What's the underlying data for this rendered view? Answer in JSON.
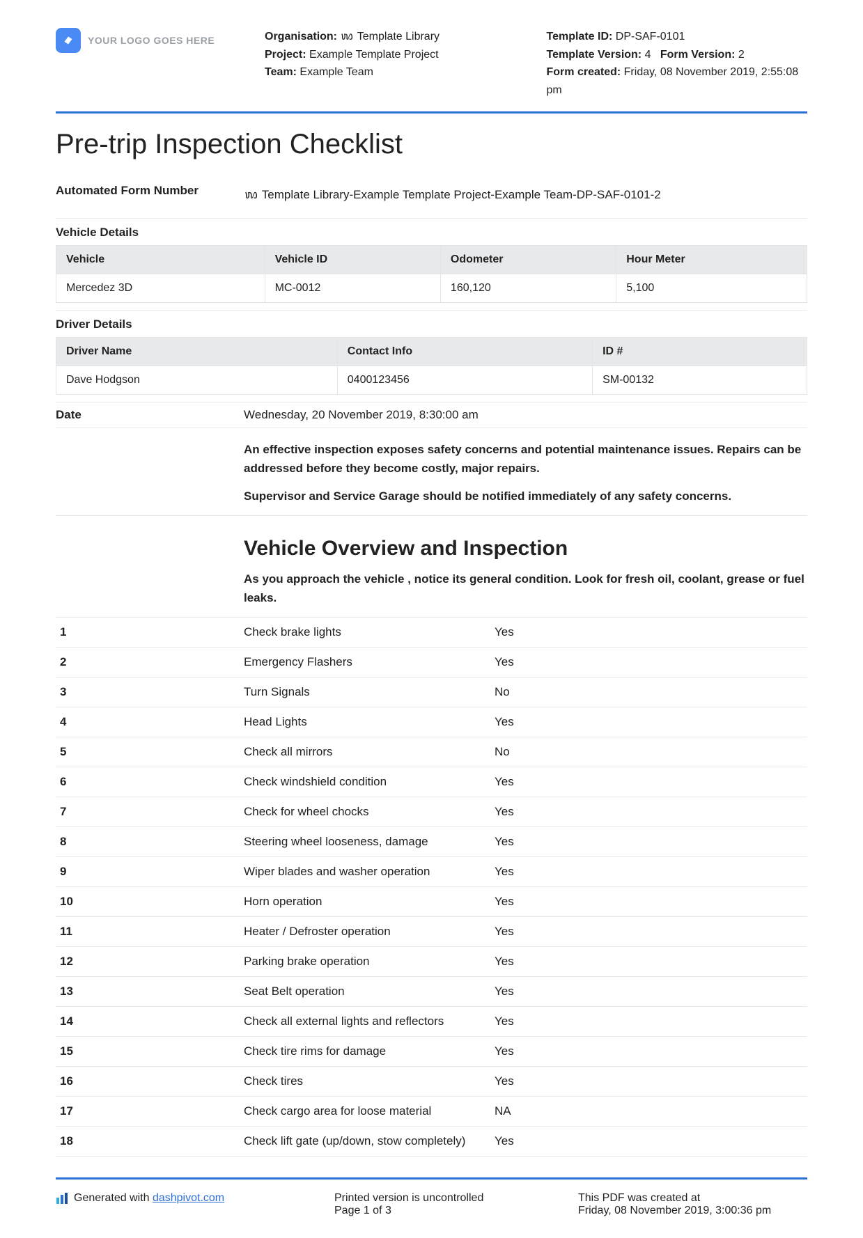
{
  "logo_text": "YOUR LOGO GOES HERE",
  "header_left": {
    "org_label": "Organisation:",
    "org_value": "ꪪ Template Library",
    "project_label": "Project:",
    "project_value": "Example Template Project",
    "team_label": "Team:",
    "team_value": "Example Team"
  },
  "header_right": {
    "tid_label": "Template ID:",
    "tid_value": "DP-SAF-0101",
    "tver_label": "Template Version:",
    "tver_value": "4",
    "fver_label": "Form Version:",
    "fver_value": "2",
    "created_label": "Form created:",
    "created_value": "Friday, 08 November 2019, 2:55:08 pm"
  },
  "title": "Pre-trip Inspection Checklist",
  "auto_form": {
    "label": "Automated Form Number",
    "value": "ꪪ Template Library-Example Template Project-Example Team-DP-SAF-0101-2"
  },
  "vehicle_details": {
    "label": "Vehicle Details",
    "columns": [
      "Vehicle",
      "Vehicle ID",
      "Odometer",
      "Hour Meter"
    ],
    "row": [
      "Mercedez 3D",
      "MC-0012",
      "160,120",
      "5,100"
    ]
  },
  "driver_details": {
    "label": "Driver Details",
    "columns": [
      "Driver Name",
      "Contact Info",
      "ID #"
    ],
    "row": [
      "Dave Hodgson",
      "0400123456",
      "SM-00132"
    ]
  },
  "date": {
    "label": "Date",
    "value": "Wednesday, 20 November 2019, 8:30:00 am"
  },
  "instruction1": "An effective inspection exposes safety concerns and potential maintenance issues. Repairs can be addressed before they become costly, major repairs.",
  "instruction2": "Supervisor and Service Garage should be notified immediately of any safety concerns.",
  "overview_heading": "Vehicle Overview and Inspection",
  "overview_sub": "As you approach the vehicle , notice its general condition. Look for fresh oil, coolant, grease or fuel leaks.",
  "checklist": [
    {
      "n": "1",
      "item": "Check brake lights",
      "ans": "Yes"
    },
    {
      "n": "2",
      "item": "Emergency Flashers",
      "ans": "Yes"
    },
    {
      "n": "3",
      "item": "Turn Signals",
      "ans": "No"
    },
    {
      "n": "4",
      "item": "Head Lights",
      "ans": "Yes"
    },
    {
      "n": "5",
      "item": "Check all mirrors",
      "ans": "No"
    },
    {
      "n": "6",
      "item": "Check windshield condition",
      "ans": "Yes"
    },
    {
      "n": "7",
      "item": "Check for wheel chocks",
      "ans": "Yes"
    },
    {
      "n": "8",
      "item": "Steering wheel looseness, damage",
      "ans": "Yes"
    },
    {
      "n": "9",
      "item": "Wiper blades and washer operation",
      "ans": "Yes"
    },
    {
      "n": "10",
      "item": "Horn operation",
      "ans": "Yes"
    },
    {
      "n": "11",
      "item": "Heater / Defroster operation",
      "ans": "Yes"
    },
    {
      "n": "12",
      "item": "Parking brake operation",
      "ans": "Yes"
    },
    {
      "n": "13",
      "item": "Seat Belt operation",
      "ans": "Yes"
    },
    {
      "n": "14",
      "item": "Check all external lights and reflectors",
      "ans": "Yes"
    },
    {
      "n": "15",
      "item": "Check tire rims for damage",
      "ans": "Yes"
    },
    {
      "n": "16",
      "item": "Check tires",
      "ans": "Yes"
    },
    {
      "n": "17",
      "item": "Check cargo area for loose material",
      "ans": "NA"
    },
    {
      "n": "18",
      "item": "Check lift gate (up/down, stow completely)",
      "ans": "Yes"
    }
  ],
  "footer": {
    "gen_prefix": "Generated with ",
    "gen_link": "dashpivot.com",
    "mid_line1": "Printed version is uncontrolled",
    "mid_line2": "Page 1 of 3",
    "right_line1": "This PDF was created at",
    "right_line2": "Friday, 08 November 2019, 3:00:36 pm"
  },
  "colors": {
    "accent": "#2b6fd8",
    "logo_bg": "#4a8af4",
    "th_bg": "#e8e9eb",
    "border": "#e2e4e7",
    "rule": "#e9eaec",
    "muted": "#9aa0a6"
  }
}
